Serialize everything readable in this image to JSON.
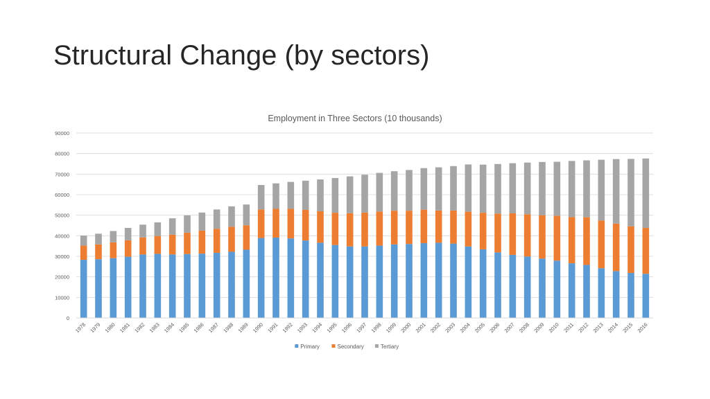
{
  "slide": {
    "title": "Structural Change (by sectors)"
  },
  "colors": {
    "primary": "#5b9bd5",
    "secondary": "#ed7d31",
    "tertiary": "#a5a5a5",
    "grid": "#d9d9d9",
    "text": "#595959"
  },
  "chart_data": {
    "type": "bar",
    "stacked": true,
    "title": "Employment in Three Sectors (10 thousands)",
    "xlabel": "",
    "ylabel": "",
    "ylim": [
      0,
      90000
    ],
    "yticks": [
      0,
      10000,
      20000,
      30000,
      40000,
      50000,
      60000,
      70000,
      80000,
      90000
    ],
    "grid": true,
    "legend_position": "bottom",
    "categories": [
      "1978",
      "1979",
      "1980",
      "1981",
      "1982",
      "1983",
      "1984",
      "1985",
      "1986",
      "1987",
      "1988",
      "1989",
      "1990",
      "1991",
      "1992",
      "1993",
      "1994",
      "1995",
      "1996",
      "1997",
      "1998",
      "1999",
      "2000",
      "2001",
      "2002",
      "2003",
      "2004",
      "2005",
      "2006",
      "2007",
      "2008",
      "2009",
      "2010",
      "2011",
      "2012",
      "2013",
      "2014",
      "2015",
      "2016"
    ],
    "series": [
      {
        "name": "Primary",
        "values": [
          28300,
          28600,
          29100,
          29800,
          30900,
          31200,
          30900,
          31100,
          31300,
          31700,
          32200,
          33200,
          38900,
          39100,
          38700,
          37700,
          36600,
          35500,
          34800,
          34800,
          35200,
          35800,
          36000,
          36400,
          36600,
          36200,
          34800,
          33400,
          31900,
          30700,
          29900,
          28900,
          27900,
          26600,
          25800,
          24200,
          22800,
          21900,
          21500
        ]
      },
      {
        "name": "Secondary",
        "values": [
          6900,
          7200,
          7700,
          8000,
          8300,
          8700,
          9600,
          10400,
          11200,
          11700,
          12200,
          11900,
          13900,
          14000,
          14400,
          14900,
          15300,
          15700,
          16200,
          16500,
          16600,
          16400,
          16200,
          16300,
          15700,
          16100,
          16900,
          17800,
          18900,
          20200,
          20600,
          21100,
          21800,
          22500,
          23200,
          23200,
          23100,
          22700,
          22300
        ]
      },
      {
        "name": "Tertiary",
        "values": [
          4900,
          5200,
          5500,
          6000,
          6200,
          6600,
          8000,
          8400,
          8800,
          9400,
          9900,
          10100,
          11900,
          12400,
          13100,
          14200,
          15500,
          16900,
          17900,
          18400,
          18800,
          19200,
          19800,
          20200,
          21000,
          21600,
          23000,
          23400,
          24100,
          24400,
          25100,
          25900,
          26300,
          27300,
          27700,
          29600,
          31400,
          32800,
          33800
        ]
      }
    ]
  }
}
